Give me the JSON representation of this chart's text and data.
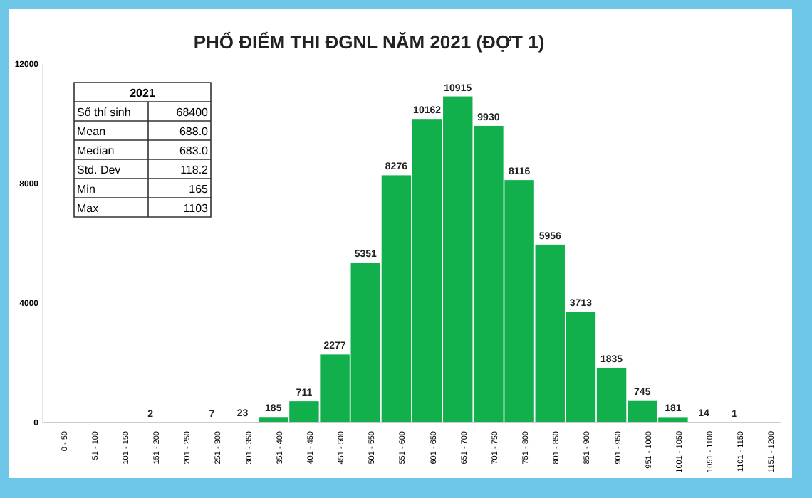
{
  "chart_data": {
    "type": "bar",
    "title": "PHỔ ĐIỂM THI ĐGNL NĂM 2021 (ĐỢT 1)",
    "categories": [
      "0 - 50",
      "51 - 100",
      "101 - 150",
      "151 - 200",
      "201 - 250",
      "251 - 300",
      "301 - 350",
      "351 - 400",
      "401 - 450",
      "451 - 500",
      "501 - 550",
      "551 - 600",
      "601 - 650",
      "651 - 700",
      "701 - 750",
      "751 - 800",
      "801 - 850",
      "851 - 900",
      "901 - 950",
      "951 - 1000",
      "1001 - 1050",
      "1051 - 1100",
      "1101 - 1150",
      "1151 - 1200"
    ],
    "values": [
      0,
      0,
      0,
      2,
      0,
      7,
      23,
      185,
      711,
      2277,
      5351,
      8276,
      10162,
      10915,
      9930,
      8116,
      5956,
      3713,
      1835,
      745,
      181,
      14,
      1,
      0
    ],
    "value_labels": [
      null,
      null,
      null,
      "2",
      null,
      "7",
      "23",
      "185",
      "711",
      "2277",
      "5351",
      "8276",
      "10162",
      "10915",
      "9930",
      "8116",
      "5956",
      "3713",
      "1835",
      "745",
      "181",
      "14",
      "1",
      null
    ],
    "color": "#12b04c",
    "ylim": [
      0,
      12000
    ],
    "yticks": [
      0,
      4000,
      8000,
      12000
    ],
    "grid": false,
    "annotations": [
      "2021",
      "Số thí sinh",
      "68400",
      "Mean",
      "688.0",
      "Median",
      "683.0",
      "Std. Dev",
      "118.2",
      "Min",
      "165",
      "Max",
      "1103"
    ]
  }
}
